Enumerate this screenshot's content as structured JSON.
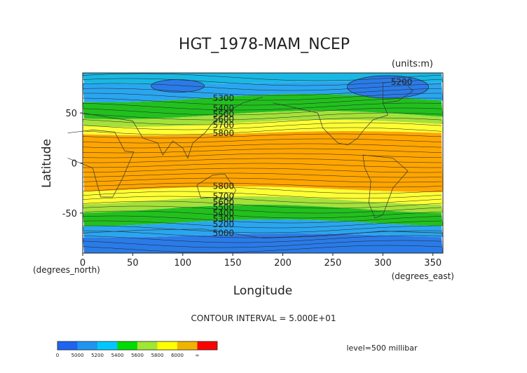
{
  "chart_data": {
    "type": "heatmap",
    "title": "HGT_1978-MAM_NCEP",
    "units": "(units:m)",
    "xlabel": "Longitude",
    "ylabel": "Latitude",
    "x_unit_label": "(degrees_east)",
    "y_unit_label": "(degrees_north)",
    "xlim": [
      0,
      360
    ],
    "ylim": [
      -90,
      90
    ],
    "x_ticks": [
      "0",
      "50",
      "100",
      "150",
      "200",
      "250",
      "300",
      "350"
    ],
    "x_tick_values": [
      0,
      50,
      100,
      150,
      200,
      250,
      300,
      350
    ],
    "y_ticks": [
      "50",
      "0",
      "-50"
    ],
    "y_tick_values": [
      50,
      0,
      -50
    ],
    "contour_interval_text": "CONTOUR INTERVAL = 5.000E+01",
    "level_text": "level=500 millibar",
    "contour_labels": [
      {
        "text": "5300",
        "lon": 130,
        "lat": 62
      },
      {
        "text": "5400",
        "lon": 130,
        "lat": 52
      },
      {
        "text": "5500",
        "lon": 130,
        "lat": 46
      },
      {
        "text": "5600",
        "lon": 130,
        "lat": 41
      },
      {
        "text": "5700",
        "lon": 130,
        "lat": 35
      },
      {
        "text": "5800",
        "lon": 130,
        "lat": 27
      },
      {
        "text": "5200",
        "lon": 308,
        "lat": 78
      },
      {
        "text": "5800",
        "lon": 130,
        "lat": -26
      },
      {
        "text": "5700",
        "lon": 130,
        "lat": -36
      },
      {
        "text": "5600",
        "lon": 130,
        "lat": -42
      },
      {
        "text": "5500",
        "lon": 130,
        "lat": -47
      },
      {
        "text": "5400",
        "lon": 130,
        "lat": -53
      },
      {
        "text": "5300",
        "lon": 130,
        "lat": -59
      },
      {
        "text": "5200",
        "lon": 130,
        "lat": -64
      },
      {
        "text": "5000",
        "lon": 130,
        "lat": -73
      }
    ],
    "colorbar": {
      "labels": [
        "0",
        "5000",
        "5200",
        "5400",
        "5600",
        "5800",
        "6000",
        "∞"
      ],
      "colors": [
        "#1e64f0",
        "#1e96f0",
        "#00c8ff",
        "#00dc00",
        "#a0e632",
        "#ffff00",
        "#f0b400",
        "#ff0000"
      ]
    },
    "fill_colors": {
      "c1": "#2a7be8",
      "c2": "#2aa6f0",
      "c3": "#3ad0f2",
      "c4": "#22c01e",
      "c5": "#a4e13a",
      "c6": "#ffff35",
      "c7": "#ffa500",
      "ocean": "#19b8e4"
    }
  }
}
